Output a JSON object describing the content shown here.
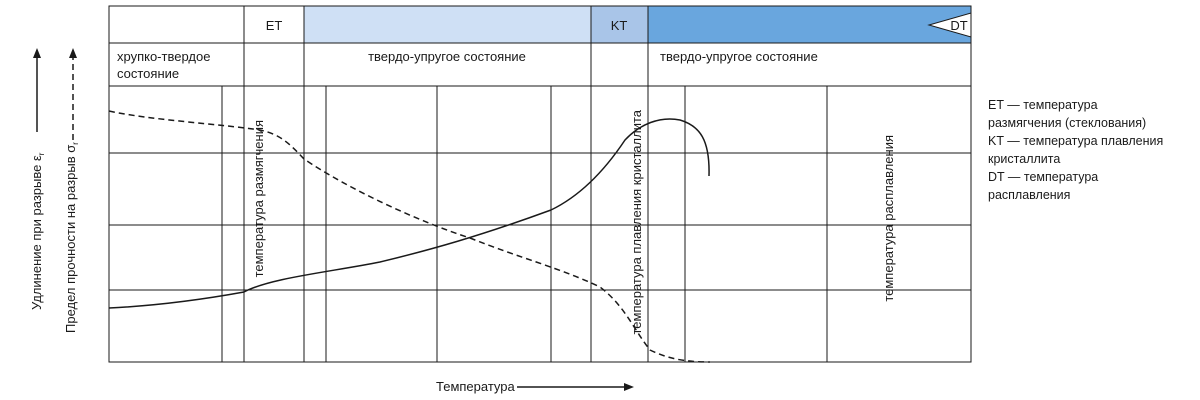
{
  "header": {
    "et_code": "ET",
    "kt_code": "KT",
    "dt_code": "DT",
    "color_light_blue": "#cfe0f5",
    "color_mid_blue": "#a9c5e8",
    "color_dark_blue": "#69a6de"
  },
  "states": {
    "brittle": [
      "хрупко-твердое",
      "состояние"
    ],
    "elastic_1": "твердо-упругое состояние",
    "elastic_2": "твердо-упругое состояние"
  },
  "vertical_labels": {
    "softening": "температура размягчения",
    "crystallite_melting": "температура плавления кристаллита",
    "melting": "температура расплавления"
  },
  "axes": {
    "y1_label": "Удлинение при разрыве ε",
    "y1_sub": "r",
    "y2_label": "Предел прочности на разрыв σ",
    "y2_sub": "r",
    "x_label": "Температура"
  },
  "legend": {
    "lines": [
      "ET — температура",
      "размягчения (стеклования)",
      "KT — температура плавления",
      "кристаллита",
      "DT — температура",
      "расплавления"
    ]
  }
}
